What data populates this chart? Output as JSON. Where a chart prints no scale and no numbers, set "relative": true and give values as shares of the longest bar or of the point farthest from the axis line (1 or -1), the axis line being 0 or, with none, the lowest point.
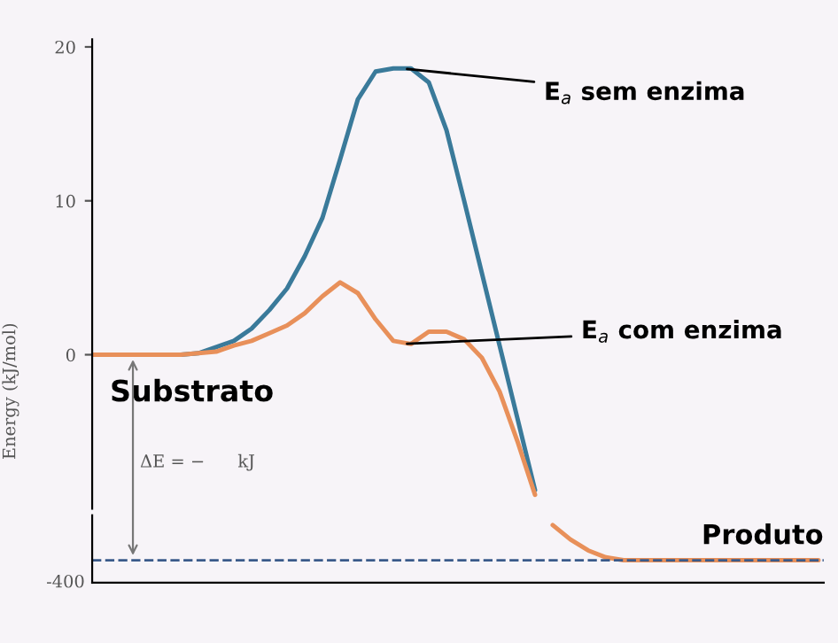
{
  "chart_data": [
    {
      "type": "line",
      "ylabel": "Energy (kJ/mol)",
      "ylim": [
        -10,
        20.5
      ],
      "yticks": [
        0,
        10,
        20
      ],
      "grid": false,
      "legend": false,
      "marker": "none",
      "line_style": "solid",
      "tick_labels": "y",
      "categories": [
        null,
        null,
        null,
        null,
        null,
        null,
        null,
        null,
        null,
        null,
        null,
        null,
        null,
        null,
        null,
        null,
        null,
        null,
        null,
        null,
        null,
        null,
        null,
        null,
        null,
        null,
        null,
        null,
        null,
        null,
        null,
        null,
        null,
        null,
        null,
        null,
        null,
        null,
        null,
        null,
        null,
        null
      ],
      "series": [
        {
          "color": "#3a7a9a",
          "values": [
            null,
            null,
            null,
            null,
            null,
            0,
            0.1,
            0.5,
            0.9,
            1.7,
            2.9,
            4.3,
            6.4,
            8.9,
            12.7,
            16.6,
            18.4,
            18.6,
            18.6,
            17.7,
            14.6,
            10.0,
            5.3,
            0.6,
            -4.1,
            -8.8,
            null,
            null,
            null,
            null,
            null,
            null,
            null,
            null,
            null,
            null,
            null,
            null,
            null,
            null,
            null,
            null
          ]
        },
        {
          "color": "#e8905a",
          "values": [
            0,
            0,
            0,
            0,
            0,
            0,
            0.1,
            0.2,
            0.6,
            0.9,
            1.4,
            1.9,
            2.7,
            3.8,
            4.7,
            4.0,
            2.3,
            0.9,
            0.7,
            1.5,
            1.5,
            1.0,
            -0.2,
            -2.4,
            -5.6,
            -9.1,
            null,
            null,
            null,
            null,
            null,
            null,
            null,
            null,
            null,
            null,
            null,
            null,
            null,
            null,
            null,
            null
          ]
        }
      ],
      "annotations": [
        "E$_{a}$ sem enzima",
        "E$_{a}$ com enzima",
        "Substrato",
        "ΔE = −      kJ"
      ]
    },
    {
      "type": "line",
      "relative": true,
      "grid": false,
      "legend": false,
      "marker": "none",
      "line_style": "solid",
      "tick_labels": "y",
      "categories": [
        null,
        null,
        null,
        null,
        null,
        null,
        null,
        null,
        null,
        null,
        null,
        null,
        null,
        null,
        null,
        null,
        null,
        null,
        null,
        null,
        null,
        null,
        null,
        null,
        null,
        null,
        null,
        null,
        null,
        null,
        null,
        null,
        null,
        null,
        null,
        null,
        null,
        null,
        null,
        null,
        null,
        null
      ],
      "series": [
        {
          "color": "#e8905a",
          "values": [
            null,
            null,
            null,
            null,
            null,
            null,
            null,
            null,
            null,
            null,
            null,
            null,
            null,
            null,
            null,
            null,
            null,
            null,
            null,
            null,
            null,
            null,
            null,
            null,
            null,
            null,
            1,
            0.75,
            0.56,
            0.44,
            0.39,
            0.39,
            0.39,
            0.39,
            0.39,
            0.39,
            0.39,
            0.39,
            0.39,
            0.39,
            0.39,
            0.39
          ]
        }
      ],
      "ref_lines": [
        {
          "axis": "y",
          "value": 0.39,
          "color": "#3a5a8a",
          "line_style": "dashed"
        }
      ],
      "annotations": [
        "Produto",
        "-400"
      ]
    }
  ]
}
